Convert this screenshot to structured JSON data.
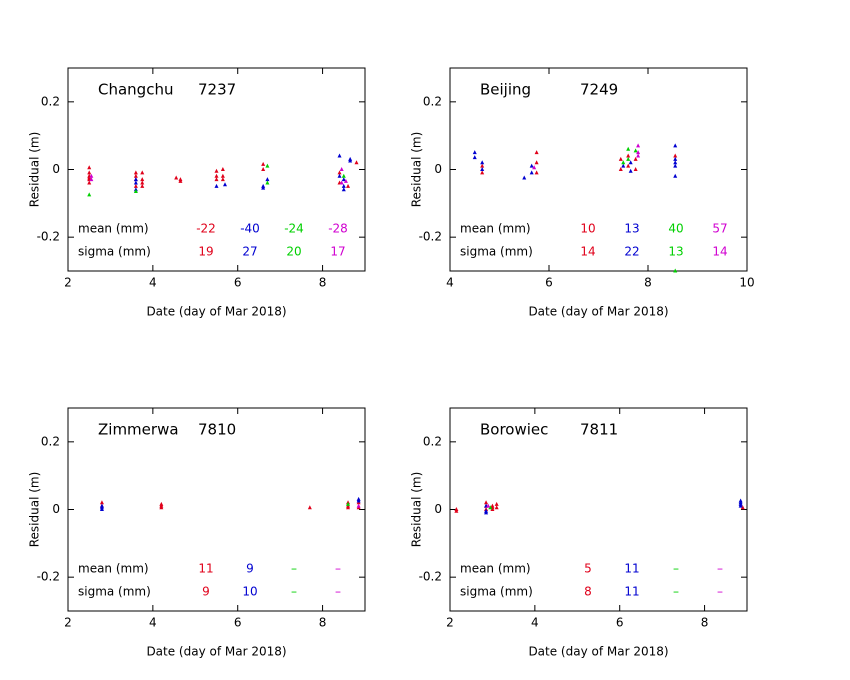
{
  "chart_data": [
    {
      "type": "scatter",
      "title": "Changchu",
      "station": "7237",
      "xlabel": "Date (day of Mar 2018)",
      "ylabel": "Residual (m)",
      "xlim": [
        2,
        9
      ],
      "xticks": [
        2,
        4,
        6,
        8
      ],
      "ylim": [
        -0.3,
        0.3
      ],
      "yticks": [
        -0.2,
        0,
        0.2
      ],
      "mean_label": "mean (mm)",
      "sigma_label": "sigma (mm)",
      "series": [
        {
          "color": "#e0001a",
          "mean": -22,
          "sigma": 19,
          "x": [
            2.5,
            2.5,
            2.5,
            2.5,
            2.5,
            2.5,
            3.6,
            3.6,
            3.6,
            3.6,
            3.75,
            3.75,
            3.75,
            3.75,
            4.55,
            4.65,
            4.65,
            5.5,
            5.5,
            5.5,
            5.65,
            5.65,
            5.65,
            6.6,
            6.6,
            8.4,
            8.4,
            8.6,
            8.8
          ],
          "values": [
            0.005,
            -0.01,
            -0.02,
            -0.03,
            -0.04,
            -0.025,
            -0.01,
            -0.03,
            -0.05,
            -0.02,
            -0.01,
            -0.03,
            -0.05,
            -0.04,
            -0.025,
            -0.035,
            -0.03,
            -0.005,
            -0.02,
            -0.03,
            0,
            -0.02,
            -0.03,
            0.015,
            0,
            -0.01,
            -0.04,
            -0.05,
            0.02
          ]
        },
        {
          "color": "#0000d0",
          "mean": -40,
          "sigma": 27,
          "x": [
            3.6,
            3.6,
            3.6,
            5.5,
            5.7,
            6.6,
            6.6,
            6.7,
            8.4,
            8.4,
            8.5,
            8.5,
            8.5,
            8.65,
            8.65
          ],
          "values": [
            -0.04,
            -0.06,
            -0.03,
            -0.05,
            -0.045,
            -0.05,
            -0.055,
            -0.03,
            0.04,
            -0.02,
            -0.05,
            -0.06,
            -0.03,
            0.03,
            0.025
          ]
        },
        {
          "color": "#00d000",
          "mean": -24,
          "sigma": 20,
          "x": [
            2.5,
            3.6,
            6.7,
            6.7,
            8.5
          ],
          "values": [
            -0.075,
            -0.065,
            0.01,
            -0.04,
            -0.02
          ]
        },
        {
          "color": "#d000d0",
          "mean": -28,
          "sigma": 17,
          "x": [
            2.55,
            2.55,
            8.45,
            8.45,
            8.55
          ],
          "values": [
            -0.02,
            -0.03,
            -0.04,
            0,
            -0.035
          ]
        }
      ]
    },
    {
      "type": "scatter",
      "title": "Beijing",
      "station": "7249",
      "xlabel": "Date (day of Mar 2018)",
      "ylabel": "Residual (m)",
      "xlim": [
        4,
        10
      ],
      "xticks": [
        4,
        6,
        8,
        10
      ],
      "ylim": [
        -0.3,
        0.3
      ],
      "yticks": [
        -0.2,
        0,
        0.2
      ],
      "mean_label": "mean (mm)",
      "sigma_label": "sigma (mm)",
      "series": [
        {
          "color": "#e0001a",
          "mean": 10,
          "sigma": 14,
          "x": [
            4.65,
            4.65,
            5.75,
            5.75,
            5.75,
            7.45,
            7.45,
            7.6,
            7.6,
            7.75,
            7.75,
            8.55
          ],
          "values": [
            0.01,
            -0.01,
            0.05,
            0.02,
            -0.01,
            0.03,
            0,
            0.04,
            0.01,
            0.03,
            0,
            0.04
          ]
        },
        {
          "color": "#0000d0",
          "mean": 13,
          "sigma": 22,
          "x": [
            4.5,
            4.5,
            4.65,
            4.65,
            5.5,
            5.65,
            5.65,
            7.5,
            7.65,
            7.65,
            8.55,
            8.55,
            8.55,
            8.55,
            8.55
          ],
          "values": [
            0.05,
            0.035,
            0.02,
            0,
            -0.025,
            0.01,
            -0.01,
            0.01,
            0.02,
            -0.005,
            0.07,
            0.03,
            0.01,
            -0.02,
            0.02
          ]
        },
        {
          "color": "#00d000",
          "mean": 40,
          "sigma": 13,
          "x": [
            7.5,
            7.6,
            7.6,
            7.75,
            8.55
          ],
          "values": [
            0.02,
            0.06,
            0.03,
            0.055,
            -0.3
          ]
        },
        {
          "color": "#d000d0",
          "mean": 57,
          "sigma": 14,
          "x": [
            5.7,
            7.8,
            7.8,
            7.8
          ],
          "values": [
            0.005,
            0.07,
            0.05,
            0.04
          ]
        }
      ]
    },
    {
      "type": "scatter",
      "title": "Zimmerwa",
      "station": "7810",
      "xlabel": "Date (day of Mar 2018)",
      "ylabel": "Residual (m)",
      "xlim": [
        2,
        9
      ],
      "xticks": [
        2,
        4,
        6,
        8
      ],
      "ylim": [
        -0.3,
        0.3
      ],
      "yticks": [
        -0.2,
        0,
        0.2
      ],
      "mean_label": "mean (mm)",
      "sigma_label": "sigma (mm)",
      "series": [
        {
          "color": "#e0001a",
          "mean": 11,
          "sigma": 9,
          "x": [
            2.8,
            2.8,
            4.2,
            4.2,
            4.2,
            7.7,
            8.6,
            8.6,
            8.6,
            8.85,
            8.85
          ],
          "values": [
            0.02,
            0.01,
            0.015,
            0.01,
            0.005,
            0.005,
            0.02,
            0.005,
            0.01,
            0.02,
            0.005
          ]
        },
        {
          "color": "#0000d0",
          "mean": 9,
          "sigma": 10,
          "x": [
            2.8,
            2.8,
            2.8,
            8.85,
            8.85
          ],
          "values": [
            0.01,
            0,
            0.005,
            0.03,
            0.025
          ]
        },
        {
          "color": "#00d000",
          "mean": "–",
          "sigma": "–",
          "x": [
            8.6
          ],
          "values": [
            0.015
          ]
        },
        {
          "color": "#d000d0",
          "mean": "–",
          "sigma": "–",
          "x": [
            8.85
          ],
          "values": [
            0.01
          ]
        }
      ]
    },
    {
      "type": "scatter",
      "title": "Borowiec",
      "station": "7811",
      "xlabel": "Date (day of Mar 2018)",
      "ylabel": "Residual (m)",
      "xlim": [
        2,
        9
      ],
      "xticks": [
        2,
        4,
        6,
        8
      ],
      "ylim": [
        -0.3,
        0.3
      ],
      "yticks": [
        -0.2,
        0,
        0.2
      ],
      "mean_label": "mean (mm)",
      "sigma_label": "sigma (mm)",
      "series": [
        {
          "color": "#e0001a",
          "mean": 5,
          "sigma": 8,
          "x": [
            2.15,
            2.15,
            2.85,
            2.85,
            2.85,
            3.0,
            3.0,
            3.0,
            3.1,
            3.1,
            8.9
          ],
          "values": [
            -0.005,
            0,
            0.02,
            0.01,
            0,
            0.005,
            0.01,
            0,
            0.015,
            0.005,
            0.005
          ]
        },
        {
          "color": "#0000d0",
          "mean": 11,
          "sigma": 11,
          "x": [
            2.85,
            2.85,
            2.85,
            8.85,
            8.85,
            8.85,
            8.85
          ],
          "values": [
            0.01,
            -0.005,
            -0.01,
            0.025,
            0.02,
            0.015,
            0.01
          ]
        },
        {
          "color": "#00d000",
          "mean": "–",
          "sigma": "–",
          "x": [
            2.95
          ],
          "values": [
            0.005
          ]
        },
        {
          "color": "#d000d0",
          "mean": "–",
          "sigma": "–",
          "x": [
            2.9
          ],
          "values": [
            0.01
          ]
        }
      ]
    }
  ]
}
